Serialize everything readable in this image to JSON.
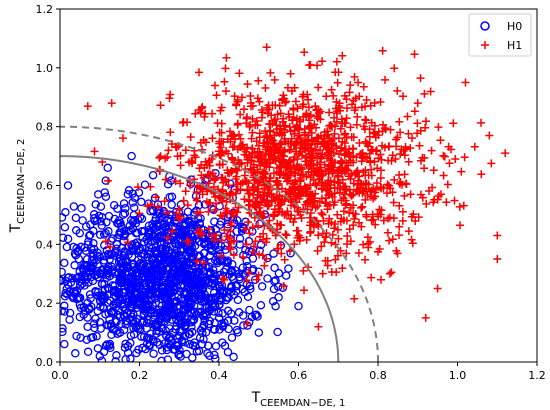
{
  "chart_data": {
    "type": "scatter",
    "title": "",
    "xlabel": {
      "main": "T",
      "sub": "CEEMDAN−DE, 1"
    },
    "ylabel": {
      "main": "T",
      "sub": "CEEMDAN−DE, 2"
    },
    "xlim": [
      0,
      1.2
    ],
    "ylim": [
      0,
      1.2
    ],
    "x_ticks": [
      "0.0",
      "0.2",
      "0.4",
      "0.6",
      "0.8",
      "1.0",
      "1.2"
    ],
    "y_ticks": [
      "0.0",
      "0.2",
      "0.4",
      "0.6",
      "0.8",
      "1.0",
      "1.2"
    ],
    "grid": false,
    "legend": {
      "position": "top-right"
    },
    "series": [
      {
        "name": "H0",
        "marker": "open-circle",
        "color": "#0000ff",
        "cluster": {
          "center_x": 0.25,
          "center_y": 0.28,
          "spread_x": 0.13,
          "spread_y": 0.14,
          "count": 1400,
          "x_range": [
            0,
            0.6
          ],
          "y_range": [
            0,
            0.7
          ]
        },
        "points": [
          [
            0.02,
            0.6
          ],
          [
            0.04,
            0.49
          ],
          [
            0.06,
            0.31
          ],
          [
            0.12,
            0.66
          ],
          [
            0.15,
            0.44
          ],
          [
            0.23,
            0.31
          ],
          [
            0.3,
            0.45
          ],
          [
            0.36,
            0.16
          ],
          [
            0.4,
            0.38
          ],
          [
            0.45,
            0.3
          ],
          [
            0.5,
            0.1
          ],
          [
            0.55,
            0.22
          ],
          [
            0.58,
            0.37
          ],
          [
            0.6,
            0.19
          ],
          [
            0.1,
            0.02
          ],
          [
            0.27,
            0.05
          ],
          [
            0.33,
            0.62
          ],
          [
            0.18,
            0.7
          ]
        ]
      },
      {
        "name": "H1",
        "marker": "plus",
        "color": "#ff0000",
        "cluster": {
          "center_x": 0.6,
          "center_y": 0.65,
          "spread_x": 0.16,
          "spread_y": 0.14,
          "count": 1400,
          "x_range": [
            0.05,
            1.12
          ],
          "y_range": [
            0.12,
            1.08
          ]
        },
        "points": [
          [
            0.07,
            0.87
          ],
          [
            0.13,
            0.88
          ],
          [
            0.22,
            0.53
          ],
          [
            0.39,
            0.94
          ],
          [
            0.52,
            1.07
          ],
          [
            0.58,
            0.98
          ],
          [
            0.63,
            1.01
          ],
          [
            0.75,
            0.95
          ],
          [
            0.9,
            0.88
          ],
          [
            1.02,
            0.95
          ],
          [
            1.08,
            0.77
          ],
          [
            1.12,
            0.71
          ],
          [
            1.1,
            0.43
          ],
          [
            1.1,
            0.35
          ],
          [
            0.92,
            0.15
          ],
          [
            0.65,
            0.12
          ],
          [
            0.47,
            0.13
          ],
          [
            0.83,
            0.3
          ],
          [
            0.95,
            0.25
          ]
        ]
      }
    ],
    "curves": [
      {
        "style": "solid",
        "color": "#808080",
        "radius": 0.7,
        "shape": "quarter-circle"
      },
      {
        "style": "dashed",
        "color": "#808080",
        "radius": 0.8,
        "shape": "quarter-circle"
      }
    ]
  }
}
